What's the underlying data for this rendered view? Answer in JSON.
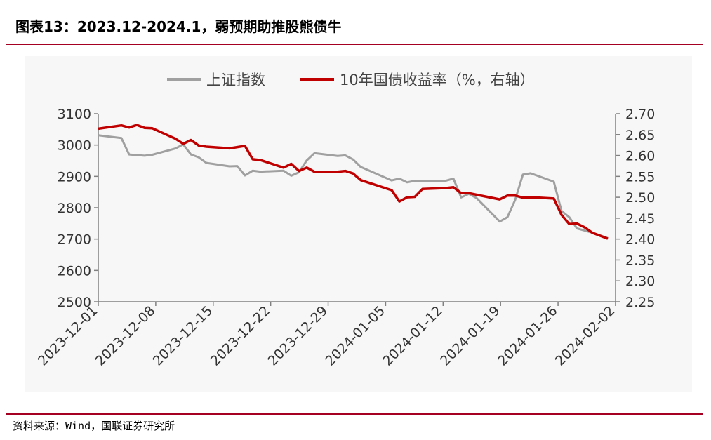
{
  "title": "图表13：2023.12-2024.1，弱预期助推股熊债牛",
  "source": "资料来源：Wind，国联证券研究所",
  "colors": {
    "accent": "#a50021",
    "index_line": "#a0a0a0",
    "yield_line": "#c00000",
    "axis": "#808080"
  },
  "chart_data": {
    "type": "line",
    "legend_position": "top",
    "x_tick_labels": [
      "2023-12-01",
      "2023-12-08",
      "2023-12-15",
      "2023-12-22",
      "2023-12-29",
      "2024-01-05",
      "2024-01-12",
      "2024-01-19",
      "2024-01-26",
      "2024-02-02"
    ],
    "x_range": [
      0,
      67
    ],
    "left_axis": {
      "ylim": [
        2500,
        3100
      ],
      "ticks": [
        "3100",
        "3000",
        "2900",
        "2800",
        "2700",
        "2600",
        "2500"
      ]
    },
    "right_axis": {
      "ylim": [
        2.25,
        2.7
      ],
      "ticks": [
        "2.70",
        "2.65",
        "2.60",
        "2.55",
        "2.50",
        "2.45",
        "2.40",
        "2.35",
        "2.30",
        "2.25"
      ]
    },
    "series": [
      {
        "name": "上证指数",
        "axis": "left",
        "x": [
          0,
          3,
          4,
          5,
          6,
          7,
          10,
          11,
          12,
          13,
          14,
          17,
          18,
          19,
          20,
          21,
          24,
          25,
          26,
          27,
          28,
          31,
          32,
          33,
          34,
          38,
          39,
          40,
          41,
          42,
          45,
          46,
          47,
          48,
          49,
          52,
          53,
          54,
          55,
          56,
          59,
          60,
          61,
          62,
          63,
          64,
          66
        ],
        "values": [
          3031,
          3022,
          2970,
          2968,
          2966,
          2969,
          2989,
          3002,
          2970,
          2961,
          2943,
          2932,
          2933,
          2903,
          2918,
          2915,
          2918,
          2902,
          2913,
          2951,
          2974,
          2965,
          2967,
          2954,
          2930,
          2887,
          2893,
          2881,
          2886,
          2884,
          2886,
          2893,
          2833,
          2844,
          2831,
          2756,
          2770,
          2825,
          2906,
          2910,
          2883,
          2790,
          2770,
          2734,
          2727,
          2720,
          2703
        ]
      },
      {
        "name": "10年国债收益率（%，右轴）",
        "axis": "right",
        "x": [
          0,
          3,
          4,
          5,
          6,
          7,
          10,
          11,
          12,
          13,
          14,
          17,
          18,
          19,
          20,
          21,
          24,
          25,
          26,
          27,
          28,
          31,
          32,
          33,
          34,
          38,
          39,
          40,
          41,
          42,
          45,
          46,
          47,
          48,
          49,
          52,
          53,
          54,
          55,
          56,
          59,
          60,
          61,
          62,
          63,
          64,
          66
        ],
        "values": [
          2.664,
          2.672,
          2.667,
          2.673,
          2.666,
          2.665,
          2.64,
          2.628,
          2.637,
          2.624,
          2.621,
          2.617,
          2.62,
          2.623,
          2.591,
          2.589,
          2.571,
          2.58,
          2.563,
          2.571,
          2.561,
          2.561,
          2.563,
          2.557,
          2.541,
          2.517,
          2.49,
          2.5,
          2.501,
          2.52,
          2.522,
          2.524,
          2.51,
          2.51,
          2.506,
          2.495,
          2.504,
          2.504,
          2.499,
          2.5,
          2.497,
          2.458,
          2.436,
          2.437,
          2.428,
          2.415,
          2.401
        ]
      }
    ]
  }
}
